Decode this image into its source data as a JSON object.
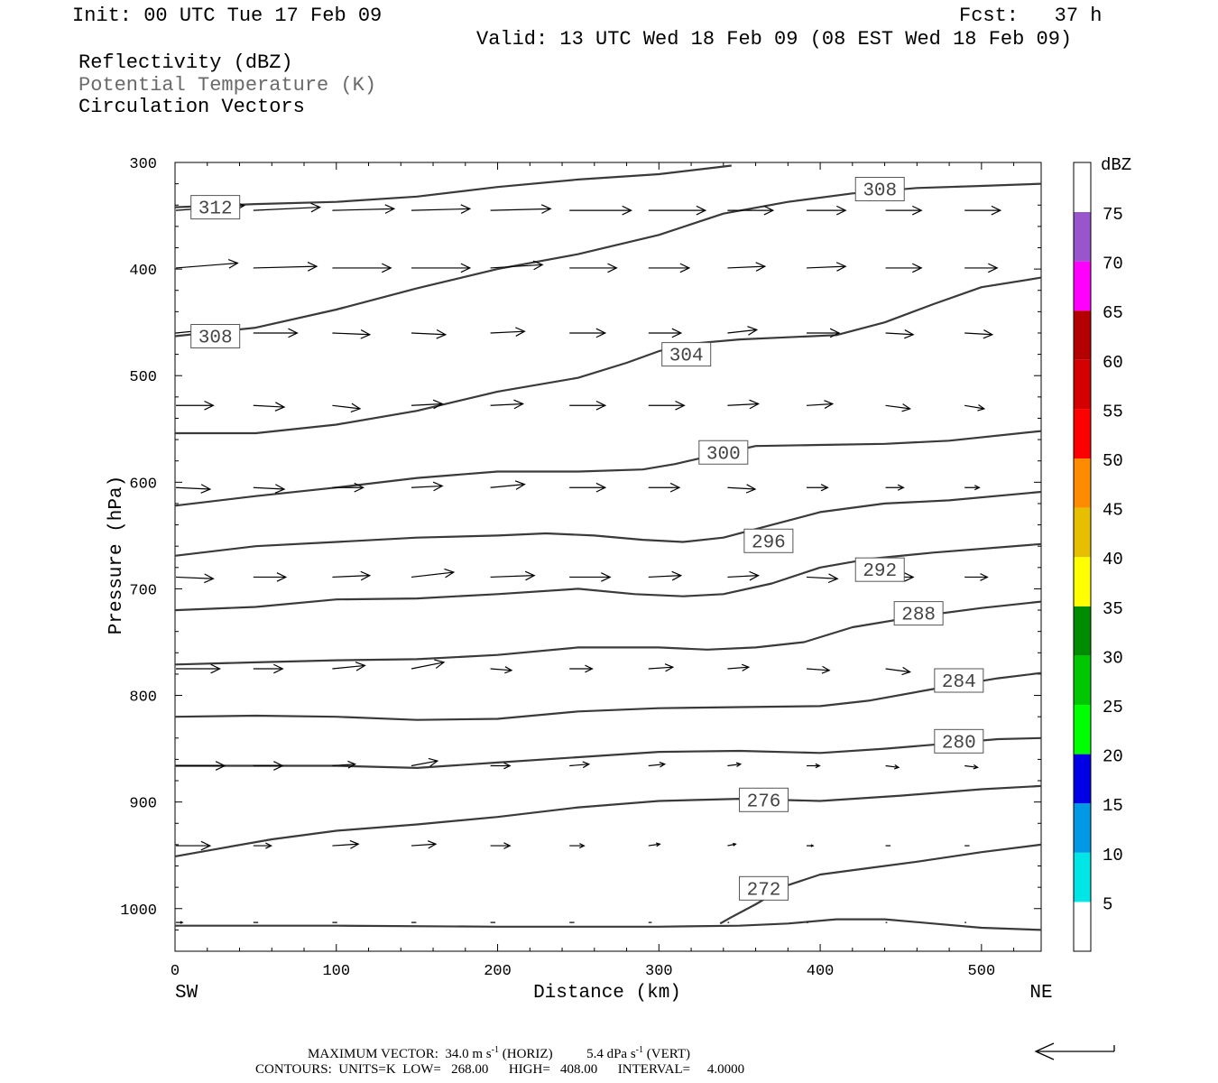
{
  "header": {
    "init": "Init: 00 UTC Tue 17 Feb 09",
    "fcst": "Fcst:   37 h",
    "valid": "Valid: 13 UTC Wed 18 Feb 09 (08 EST Wed 18 Feb 09)",
    "fields": [
      "Reflectivity (dBZ)",
      "Potential Temperature (K)",
      "Circulation Vectors"
    ]
  },
  "footer": {
    "max_vector_label": "MAXIMUM VECTOR:",
    "max_vector_horiz": "34.0 m s",
    "horiz_tag": "(HORIZ)",
    "max_vector_vert": "5.4 dPa s",
    "vert_tag": "(VERT)",
    "exponent": "-1",
    "contours_label": "CONTOURS:",
    "units": "UNITS=K",
    "low": "LOW=   268.00",
    "high": "HIGH=   408.00",
    "interval": "INTERVAL=     4.0000"
  },
  "chart_data": {
    "type": "cross-section contour",
    "xlabel": "Distance (km)",
    "ylabel": "Pressure (hPa)",
    "xlim": [
      0,
      537
    ],
    "ylim": [
      300,
      1040
    ],
    "x_ticks": [
      0,
      100,
      200,
      300,
      400,
      500
    ],
    "y_ticks": [
      300,
      400,
      500,
      600,
      700,
      800,
      900,
      1000
    ],
    "end_labels": {
      "left": "SW",
      "right": "NE"
    },
    "colorbar": {
      "title": "dBZ",
      "labels": [
        "5",
        "10",
        "15",
        "20",
        "25",
        "30",
        "35",
        "40",
        "45",
        "50",
        "55",
        "60",
        "65",
        "70",
        "75"
      ],
      "colors": [
        "#ffffff",
        "#00e6e6",
        "#0099e6",
        "#0000e6",
        "#00ff00",
        "#00c800",
        "#008c00",
        "#ffff00",
        "#e6c000",
        "#ff8c00",
        "#ff0000",
        "#d40000",
        "#b40000",
        "#ff00ff",
        "#9955cc",
        "#ffffff"
      ]
    },
    "contours": [
      {
        "level": 312,
        "label": "312",
        "label_at": [
          25,
          342
        ],
        "points": [
          [
            0,
            342
          ],
          [
            50,
            339
          ],
          [
            100,
            337
          ],
          [
            150,
            332
          ],
          [
            200,
            323
          ],
          [
            250,
            316
          ],
          [
            300,
            311
          ],
          [
            345,
            303
          ]
        ]
      },
      {
        "level": 308,
        "label": "308",
        "label_at": [
          25,
          463
        ],
        "points": [
          [
            0,
            463
          ],
          [
            50,
            455
          ],
          [
            100,
            438
          ],
          [
            150,
            418
          ],
          [
            200,
            400
          ],
          [
            250,
            386
          ],
          [
            300,
            368
          ],
          [
            340,
            348
          ],
          [
            380,
            337
          ],
          [
            420,
            329
          ],
          [
            460,
            324
          ],
          [
            500,
            322
          ],
          [
            537,
            320
          ]
        ]
      },
      {
        "level": 308,
        "label": "308",
        "label_at": [
          437,
          325
        ],
        "points": []
      },
      {
        "level": 304,
        "label": "304",
        "label_at": [
          317,
          480
        ],
        "points": [
          [
            0,
            554
          ],
          [
            50,
            554
          ],
          [
            100,
            546
          ],
          [
            150,
            533
          ],
          [
            200,
            515
          ],
          [
            250,
            502
          ],
          [
            280,
            488
          ],
          [
            300,
            477
          ],
          [
            320,
            470
          ],
          [
            350,
            466
          ],
          [
            380,
            464
          ],
          [
            410,
            462
          ],
          [
            440,
            450
          ],
          [
            470,
            433
          ],
          [
            500,
            417
          ],
          [
            537,
            408
          ]
        ]
      },
      {
        "level": 300,
        "label": "300",
        "label_at": [
          340,
          572
        ],
        "points": [
          [
            0,
            622
          ],
          [
            50,
            613
          ],
          [
            100,
            605
          ],
          [
            150,
            596
          ],
          [
            200,
            590
          ],
          [
            250,
            590
          ],
          [
            290,
            588
          ],
          [
            310,
            583
          ],
          [
            330,
            576
          ],
          [
            360,
            566
          ],
          [
            400,
            565
          ],
          [
            440,
            564
          ],
          [
            480,
            561
          ],
          [
            537,
            552
          ]
        ]
      },
      {
        "level": 296,
        "label": "296",
        "label_at": [
          368,
          655
        ],
        "points": [
          [
            0,
            669
          ],
          [
            50,
            660
          ],
          [
            100,
            656
          ],
          [
            150,
            652
          ],
          [
            200,
            650
          ],
          [
            230,
            648
          ],
          [
            260,
            650
          ],
          [
            290,
            654
          ],
          [
            315,
            656
          ],
          [
            340,
            652
          ],
          [
            370,
            640
          ],
          [
            400,
            628
          ],
          [
            440,
            620
          ],
          [
            480,
            617
          ],
          [
            537,
            609
          ]
        ]
      },
      {
        "level": 292,
        "label": "292",
        "label_at": [
          437,
          682
        ],
        "points": [
          [
            0,
            720
          ],
          [
            50,
            717
          ],
          [
            100,
            710
          ],
          [
            150,
            709
          ],
          [
            200,
            705
          ],
          [
            250,
            700
          ],
          [
            285,
            705
          ],
          [
            315,
            707
          ],
          [
            340,
            705
          ],
          [
            370,
            695
          ],
          [
            400,
            680
          ],
          [
            430,
            672
          ],
          [
            470,
            666
          ],
          [
            537,
            658
          ]
        ]
      },
      {
        "level": 288,
        "label": "288",
        "label_at": [
          461,
          723
        ],
        "points": [
          [
            0,
            771
          ],
          [
            50,
            769
          ],
          [
            100,
            767
          ],
          [
            150,
            766
          ],
          [
            200,
            762
          ],
          [
            250,
            755
          ],
          [
            300,
            755
          ],
          [
            330,
            757
          ],
          [
            360,
            755
          ],
          [
            390,
            750
          ],
          [
            420,
            736
          ],
          [
            460,
            726
          ],
          [
            500,
            718
          ],
          [
            537,
            712
          ]
        ]
      },
      {
        "level": 284,
        "label": "284",
        "label_at": [
          486,
          786
        ],
        "points": [
          [
            0,
            820
          ],
          [
            50,
            819
          ],
          [
            100,
            820
          ],
          [
            150,
            823
          ],
          [
            200,
            822
          ],
          [
            250,
            815
          ],
          [
            300,
            812
          ],
          [
            350,
            811
          ],
          [
            400,
            810
          ],
          [
            430,
            805
          ],
          [
            470,
            794
          ],
          [
            510,
            784
          ],
          [
            537,
            779
          ]
        ]
      },
      {
        "level": 280,
        "label": "280",
        "label_at": [
          486,
          843
        ],
        "points": [
          [
            0,
            866
          ],
          [
            50,
            866
          ],
          [
            100,
            866
          ],
          [
            150,
            868
          ],
          [
            200,
            863
          ],
          [
            250,
            858
          ],
          [
            300,
            853
          ],
          [
            350,
            852
          ],
          [
            400,
            854
          ],
          [
            440,
            850
          ],
          [
            480,
            845
          ],
          [
            510,
            841
          ],
          [
            537,
            840
          ]
        ]
      },
      {
        "level": 276,
        "label": "276",
        "label_at": [
          365,
          898
        ],
        "points": [
          [
            0,
            951
          ],
          [
            30,
            943
          ],
          [
            60,
            935
          ],
          [
            100,
            927
          ],
          [
            150,
            921
          ],
          [
            200,
            914
          ],
          [
            250,
            905
          ],
          [
            300,
            899
          ],
          [
            350,
            897
          ],
          [
            400,
            899
          ],
          [
            450,
            894
          ],
          [
            500,
            888
          ],
          [
            537,
            885
          ]
        ]
      },
      {
        "level": 272,
        "label": "272",
        "label_at": [
          365,
          981
        ],
        "points": [
          [
            338,
            1014
          ],
          [
            345,
            1008
          ],
          [
            360,
            996
          ],
          [
            380,
            978
          ],
          [
            400,
            968
          ],
          [
            430,
            962
          ],
          [
            460,
            956
          ],
          [
            500,
            947
          ],
          [
            537,
            940
          ]
        ]
      },
      {
        "level": 268,
        "label": "",
        "label_at": null,
        "points": [
          [
            0,
            1016
          ],
          [
            100,
            1016
          ],
          [
            200,
            1017
          ],
          [
            300,
            1017
          ],
          [
            350,
            1016
          ],
          [
            380,
            1014
          ],
          [
            410,
            1010
          ],
          [
            440,
            1010
          ],
          [
            470,
            1014
          ],
          [
            500,
            1018
          ],
          [
            537,
            1020
          ]
        ]
      }
    ],
    "vectors": [
      {
        "p": 345,
        "x": [
          0,
          48,
          97,
          146,
          195,
          244,
          293,
          342,
          391,
          440,
          489
        ],
        "u": [
          42,
          41,
          38,
          36,
          37,
          38,
          35,
          28,
          24,
          22,
          22
        ],
        "v": [
          -3,
          -2,
          -1,
          -1,
          -1,
          0,
          0,
          0,
          0,
          0,
          0
        ]
      },
      {
        "p": 399,
        "x": [
          0,
          48,
          97,
          146,
          195,
          244,
          293,
          342,
          391,
          440,
          489
        ],
        "u": [
          38,
          39,
          36,
          36,
          32,
          29,
          25,
          23,
          24,
          22,
          20
        ],
        "v": [
          -3,
          -1,
          0,
          0,
          -2,
          0,
          0,
          -1,
          -1,
          0,
          0
        ]
      },
      {
        "p": 460,
        "x": [
          0,
          48,
          97,
          146,
          195,
          244,
          293,
          342,
          391,
          440,
          489
        ],
        "u": [
          30,
          27,
          23,
          21,
          21,
          22,
          20,
          18,
          20,
          17,
          17
        ],
        "v": [
          -3,
          0,
          1,
          1,
          -1,
          0,
          0,
          -2,
          0,
          1,
          1
        ]
      },
      {
        "p": 528,
        "x": [
          0,
          48,
          97,
          146,
          195,
          244,
          293,
          342,
          391,
          440,
          489
        ],
        "u": [
          23,
          19,
          17,
          19,
          20,
          22,
          22,
          19,
          16,
          15,
          12
        ],
        "v": [
          0,
          1,
          2,
          -1,
          -1,
          0,
          0,
          -1,
          -1,
          2,
          2
        ]
      },
      {
        "p": 605,
        "x": [
          0,
          48,
          97,
          146,
          195,
          244,
          293,
          342,
          391,
          440,
          489
        ],
        "u": [
          21,
          19,
          19,
          19,
          21,
          22,
          19,
          17,
          13,
          11,
          9
        ],
        "v": [
          1,
          1,
          0,
          -1,
          -2,
          0,
          0,
          1,
          0,
          0,
          0
        ]
      },
      {
        "p": 689,
        "x": [
          0,
          48,
          97,
          146,
          195,
          244,
          293,
          342,
          391,
          440,
          489
        ],
        "u": [
          23,
          20,
          23,
          26,
          27,
          25,
          20,
          19,
          19,
          17,
          14
        ],
        "v": [
          1,
          0,
          -1,
          -3,
          -1,
          0,
          -1,
          -1,
          1,
          0,
          0
        ]
      },
      {
        "p": 775,
        "x": [
          0,
          48,
          97,
          146,
          195,
          244,
          293,
          342,
          391,
          440,
          489
        ],
        "u": [
          27,
          18,
          20,
          20,
          13,
          14,
          15,
          13,
          14,
          15,
          0
        ],
        "v": [
          0,
          0,
          -2,
          -4,
          1,
          0,
          -1,
          -1,
          1,
          2,
          0
        ]
      },
      {
        "p": 866,
        "x": [
          0,
          48,
          97,
          146,
          195,
          244,
          293,
          342,
          391,
          440,
          489
        ],
        "u": [
          30,
          18,
          14,
          16,
          12,
          12,
          10,
          8,
          8,
          8,
          8
        ],
        "v": [
          0,
          0,
          -1,
          -3,
          0,
          -1,
          -1,
          -1,
          0,
          1,
          1
        ]
      },
      {
        "p": 941,
        "x": [
          0,
          48,
          97,
          146,
          195,
          244,
          293,
          342,
          391,
          440,
          489
        ],
        "u": [
          21,
          11,
          16,
          15,
          12,
          9,
          7,
          5,
          4,
          3,
          3
        ],
        "v": [
          0,
          0,
          -1,
          -1,
          0,
          0,
          -1,
          -1,
          0,
          0,
          0
        ]
      },
      {
        "p": 1013,
        "x": [
          0,
          48,
          97,
          146,
          195,
          244,
          293,
          342,
          391,
          440,
          489
        ],
        "u": [
          4,
          3,
          3,
          3,
          3,
          3,
          2,
          1,
          1,
          1,
          1
        ],
        "v": [
          0,
          0,
          0,
          0,
          0,
          0,
          0,
          0,
          0,
          0,
          0
        ]
      }
    ]
  }
}
